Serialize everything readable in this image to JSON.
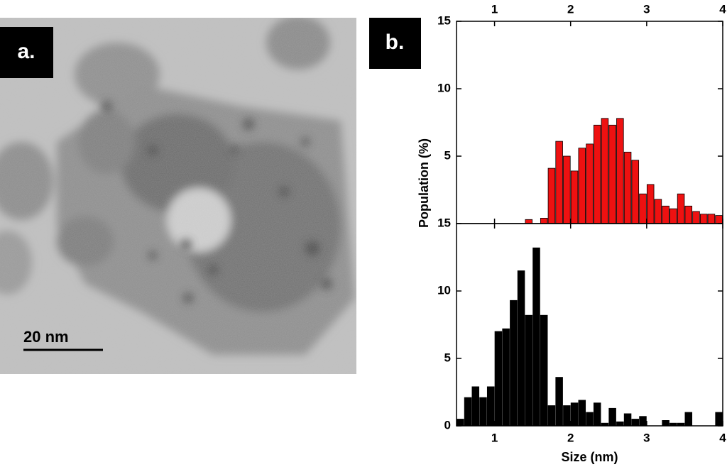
{
  "panel_labels": [
    "a.",
    "b."
  ],
  "scale_bar": "20 nm",
  "chart_data": [
    {
      "type": "histogram",
      "color": "#ee1111",
      "ylabel": "Population (%)",
      "bins": [
        0.5,
        0.6,
        0.7,
        0.8,
        0.9,
        1.0,
        1.1,
        1.2,
        1.3,
        1.4,
        1.5,
        1.6,
        1.7,
        1.8,
        1.9,
        2.0,
        2.1,
        2.2,
        2.3,
        2.4,
        2.5,
        2.6,
        2.7,
        2.8,
        2.9,
        3.0,
        3.1,
        3.2,
        3.3,
        3.4,
        3.5,
        3.6,
        3.7,
        3.8,
        3.9,
        4.0
      ],
      "values": [
        0,
        0,
        0,
        0,
        0,
        0,
        0,
        0,
        0,
        0.3,
        0,
        0.4,
        4.1,
        6.1,
        5.0,
        3.9,
        5.6,
        5.9,
        7.3,
        7.8,
        7.3,
        7.8,
        5.3,
        4.7,
        2.2,
        2.9,
        1.8,
        1.3,
        1.1,
        2.2,
        1.3,
        0.9,
        0.7,
        0.7,
        0.6
      ],
      "xlim": [
        0.5,
        4
      ],
      "xticks": [
        1,
        2,
        3,
        4
      ],
      "ylim": [
        0,
        15
      ],
      "yticks": [
        5,
        10,
        15
      ]
    },
    {
      "type": "histogram",
      "color": "#000000",
      "xlabel": "Size (nm)",
      "bins": [
        0.5,
        0.6,
        0.7,
        0.8,
        0.9,
        1.0,
        1.1,
        1.2,
        1.3,
        1.4,
        1.5,
        1.6,
        1.7,
        1.8,
        1.9,
        2.0,
        2.1,
        2.2,
        2.3,
        2.4,
        2.5,
        2.6,
        2.7,
        2.8,
        2.9,
        3.0,
        3.1,
        3.2,
        3.3,
        3.4,
        3.5,
        3.6,
        3.7,
        3.8,
        3.9,
        4.0
      ],
      "values": [
        0.5,
        2.1,
        2.9,
        2.1,
        2.9,
        7.0,
        7.2,
        9.3,
        11.5,
        8.2,
        13.2,
        8.2,
        1.5,
        3.6,
        1.5,
        1.7,
        1.9,
        1.0,
        1.7,
        0.2,
        1.3,
        0.3,
        0.9,
        0.5,
        0.7,
        0,
        0,
        0.4,
        0.2,
        0.2,
        1.0,
        0,
        0,
        0,
        1.0
      ],
      "xlim": [
        0.5,
        4
      ],
      "xticks": [
        1,
        2,
        3,
        4
      ],
      "ylim": [
        0,
        15
      ],
      "yticks": [
        0,
        5,
        10,
        15
      ]
    }
  ]
}
